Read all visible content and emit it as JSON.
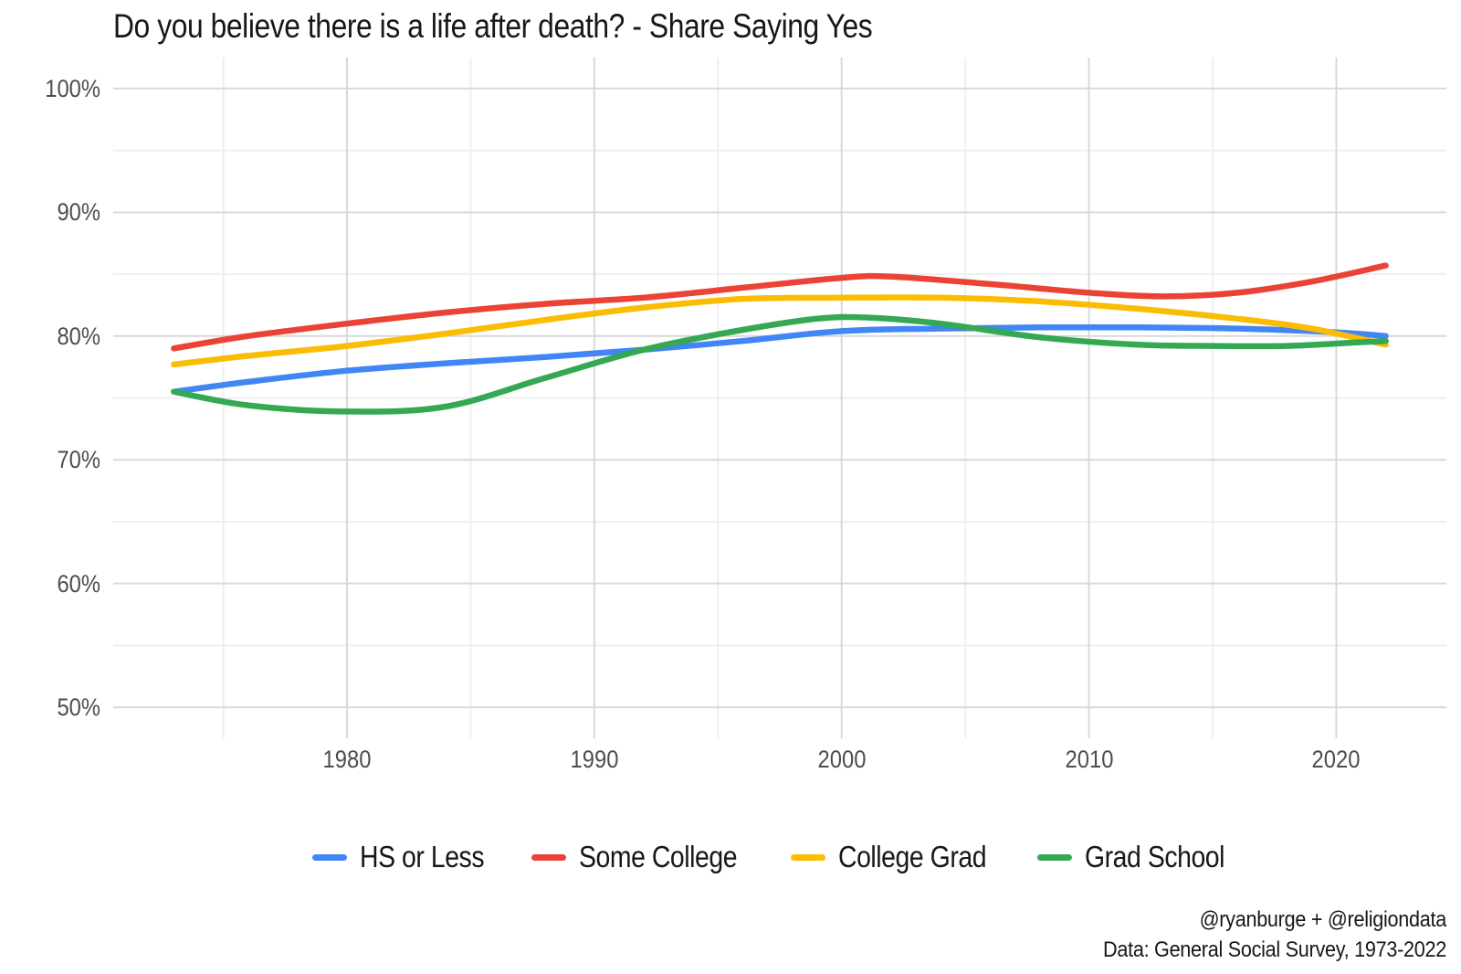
{
  "page": {
    "background": "#ffffff"
  },
  "chart_data": {
    "type": "line",
    "title": "Do you believe there is a life after death? - Share Saying Yes",
    "grid": "on",
    "legend_position": "bottom",
    "x_axis": {
      "range": [
        1970.55,
        2024.45
      ],
      "ticks": [
        {
          "value": 1980,
          "label": "1980"
        },
        {
          "value": 1990,
          "label": "1990"
        },
        {
          "value": 2000,
          "label": "2000"
        },
        {
          "value": 2010,
          "label": "2010"
        },
        {
          "value": 2020,
          "label": "2020"
        }
      ],
      "minor": [
        1975,
        1985,
        1995,
        2005,
        2015
      ]
    },
    "y_axis": {
      "range": [
        47.5,
        102.5
      ],
      "ticks": [
        {
          "value": 100,
          "label": "100%"
        },
        {
          "value": 90,
          "label": "90%"
        },
        {
          "value": 80,
          "label": "80%"
        },
        {
          "value": 70,
          "label": "70%"
        },
        {
          "value": 60,
          "label": "60%"
        },
        {
          "value": 50,
          "label": "50%"
        }
      ],
      "minor": [
        55,
        65,
        75,
        85,
        95
      ]
    },
    "series": [
      {
        "name": "HS or Less",
        "color": "#4285F4",
        "points": [
          [
            1973,
            75.5
          ],
          [
            1976,
            76.3
          ],
          [
            1980,
            77.2
          ],
          [
            1984,
            77.8
          ],
          [
            1988,
            78.3
          ],
          [
            1992,
            78.9
          ],
          [
            1996,
            79.6
          ],
          [
            2000,
            80.4
          ],
          [
            2004,
            80.6
          ],
          [
            2008,
            80.7
          ],
          [
            2012,
            80.7
          ],
          [
            2016,
            80.6
          ],
          [
            2020,
            80.3
          ],
          [
            2022,
            80.0
          ]
        ]
      },
      {
        "name": "Some College",
        "color": "#EA4335",
        "points": [
          [
            1973,
            79.0
          ],
          [
            1976,
            80.0
          ],
          [
            1980,
            81.0
          ],
          [
            1984,
            81.9
          ],
          [
            1988,
            82.6
          ],
          [
            1992,
            83.1
          ],
          [
            1996,
            83.9
          ],
          [
            2000,
            84.7
          ],
          [
            2002,
            84.8
          ],
          [
            2006,
            84.2
          ],
          [
            2010,
            83.5
          ],
          [
            2013,
            83.2
          ],
          [
            2016,
            83.5
          ],
          [
            2019,
            84.4
          ],
          [
            2022,
            85.7
          ]
        ]
      },
      {
        "name": "College Grad",
        "color": "#FBBC04",
        "points": [
          [
            1973,
            77.7
          ],
          [
            1976,
            78.4
          ],
          [
            1980,
            79.2
          ],
          [
            1984,
            80.2
          ],
          [
            1988,
            81.3
          ],
          [
            1992,
            82.3
          ],
          [
            1996,
            83.0
          ],
          [
            2000,
            83.1
          ],
          [
            2004,
            83.1
          ],
          [
            2008,
            82.8
          ],
          [
            2012,
            82.2
          ],
          [
            2016,
            81.4
          ],
          [
            2019,
            80.6
          ],
          [
            2022,
            79.3
          ]
        ]
      },
      {
        "name": "Grad School",
        "color": "#34A853",
        "points": [
          [
            1973,
            75.5
          ],
          [
            1976,
            74.4
          ],
          [
            1980,
            73.9
          ],
          [
            1984,
            74.3
          ],
          [
            1988,
            76.6
          ],
          [
            1992,
            78.9
          ],
          [
            1996,
            80.5
          ],
          [
            1999,
            81.4
          ],
          [
            2001,
            81.5
          ],
          [
            2004,
            81.0
          ],
          [
            2008,
            79.9
          ],
          [
            2012,
            79.3
          ],
          [
            2015,
            79.2
          ],
          [
            2018,
            79.2
          ],
          [
            2021,
            79.5
          ],
          [
            2022,
            79.6
          ]
        ]
      }
    ],
    "grid_colors": {
      "major": "#d9d9d9",
      "minor": "#efefef"
    }
  },
  "caption": {
    "line1": "@ryanburge + @religiondata",
    "line2": "Data: General Social Survey, 1973-2022"
  }
}
